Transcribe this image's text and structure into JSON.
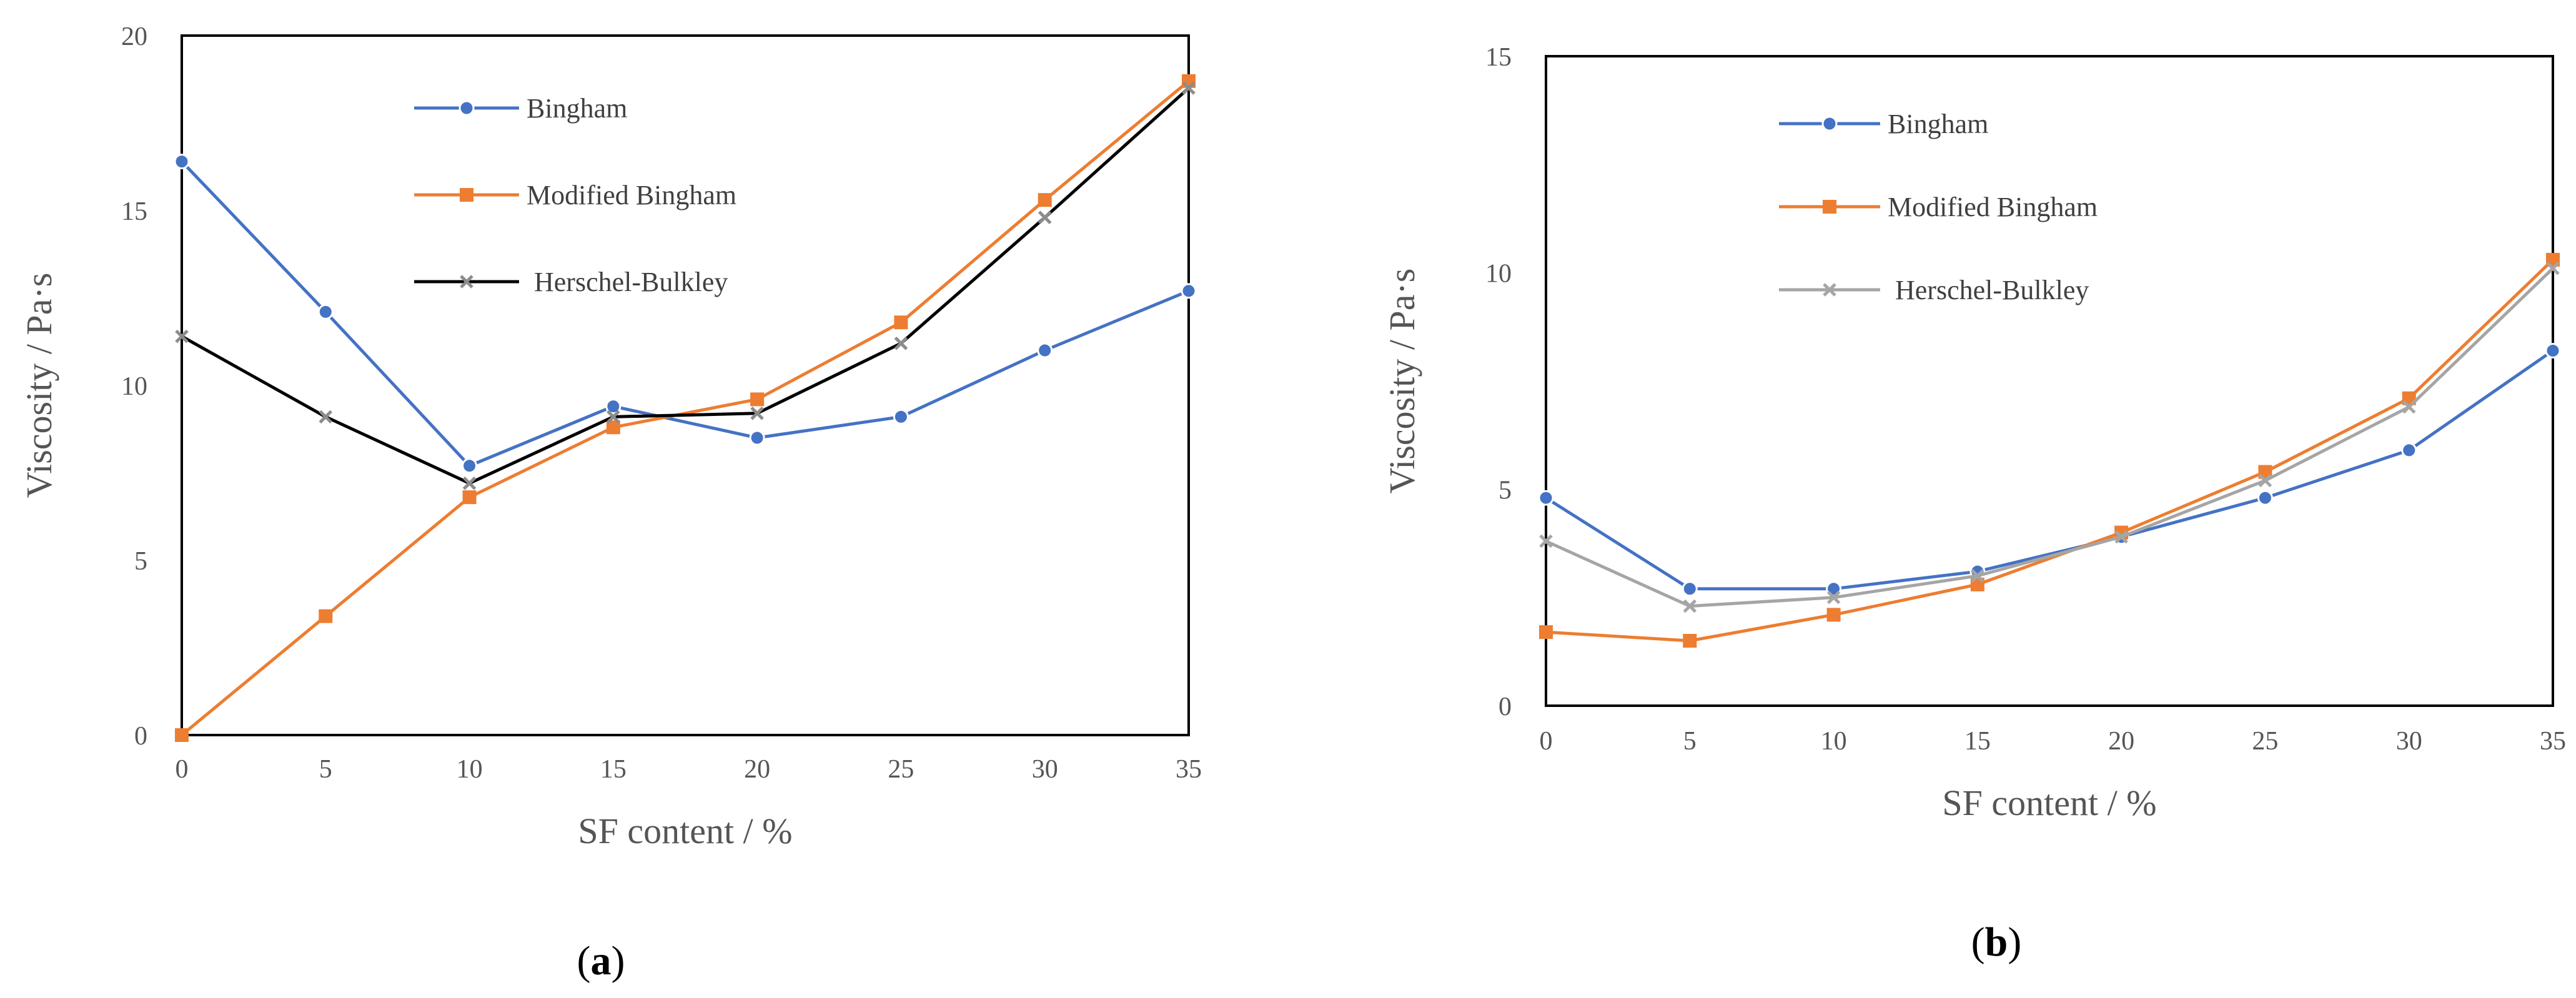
{
  "chart_data": [
    {
      "type": "line",
      "panel_label": {
        "open": "(",
        "letter": "a",
        "close": ")"
      },
      "xlabel": "SF content / %",
      "ylabel": "Viscosity / Pa·s",
      "x": [
        0,
        5,
        10,
        15,
        20,
        25,
        30,
        35
      ],
      "xlim": [
        0,
        35
      ],
      "ylim": [
        0,
        20
      ],
      "xticks": [
        "0",
        "5",
        "10",
        "15",
        "20",
        "25",
        "30",
        "35"
      ],
      "yticks": [
        "0",
        "5",
        "10",
        "15",
        "20"
      ],
      "legend_position": "top-center",
      "series": [
        {
          "name": "Bingham",
          "color": "#4472C4",
          "marker": "circle",
          "values": [
            16.4,
            12.1,
            7.7,
            9.4,
            8.5,
            9.1,
            11.0,
            12.7
          ]
        },
        {
          "name": "Modified Bingham",
          "color": "#ED7D31",
          "marker": "square",
          "values": [
            0.0,
            3.4,
            6.8,
            8.8,
            9.6,
            11.8,
            15.3,
            18.7
          ]
        },
        {
          "name": "Herschel-Bulkley",
          "color": "#000000",
          "marker_color": "#8c8c8c",
          "marker": "x",
          "values": [
            11.4,
            9.1,
            7.2,
            9.1,
            9.2,
            11.2,
            14.8,
            18.5
          ]
        }
      ]
    },
    {
      "type": "line",
      "panel_label": {
        "open": "(",
        "letter": "b",
        "close": ")"
      },
      "xlabel": "SF content / %",
      "ylabel": "Viscosity / Pa·s",
      "x": [
        0,
        5,
        10,
        15,
        20,
        25,
        30,
        35
      ],
      "xlim": [
        0,
        35
      ],
      "ylim": [
        0,
        15
      ],
      "xticks": [
        "0",
        "5",
        "10",
        "15",
        "20",
        "25",
        "30",
        "35"
      ],
      "yticks": [
        "0",
        "5",
        "10",
        "15"
      ],
      "legend_position": "top-center",
      "series": [
        {
          "name": "Bingham",
          "color": "#4472C4",
          "marker": "circle",
          "values": [
            4.8,
            2.7,
            2.7,
            3.1,
            3.9,
            4.8,
            5.9,
            8.2
          ]
        },
        {
          "name": "Modified Bingham",
          "color": "#ED7D31",
          "marker": "square",
          "values": [
            1.7,
            1.5,
            2.1,
            2.8,
            4.0,
            5.4,
            7.1,
            10.3
          ]
        },
        {
          "name": "Herschel-Bulkley",
          "color": "#A5A5A5",
          "marker_color": "#A5A5A5",
          "marker": "x",
          "values": [
            3.8,
            2.3,
            2.5,
            3.0,
            3.9,
            5.2,
            6.9,
            10.1
          ]
        }
      ]
    }
  ]
}
